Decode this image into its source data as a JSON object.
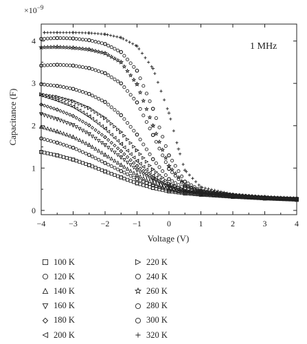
{
  "chart_data": {
    "type": "scatter",
    "title": "",
    "annotation": "1 MHz",
    "xlabel": "Voltage (V)",
    "ylabel": "Capacitance (F)",
    "y_multiplier_label": "×10",
    "y_multiplier_exponent": "−9",
    "xlim": [
      -4,
      4
    ],
    "ylim": [
      -0.1,
      4.4
    ],
    "x_ticks": [
      -4,
      -3,
      -2,
      -1,
      0,
      1,
      2,
      3,
      4
    ],
    "x_tick_labels": [
      "−4",
      "−3",
      "−2",
      "−1",
      "0",
      "1",
      "2",
      "3",
      "4"
    ],
    "y_ticks": [
      0,
      1,
      2,
      3,
      4
    ],
    "y_tick_labels": [
      "0",
      "1",
      "2",
      "3",
      "4"
    ],
    "grid": false,
    "legend_placement": "below-left",
    "series": [
      {
        "name": "100 K",
        "marker": "square",
        "points": [
          [
            -4,
            1.38
          ],
          [
            -3.5,
            1.3
          ],
          [
            -3,
            1.2
          ],
          [
            -2.5,
            1.07
          ],
          [
            -2,
            0.92
          ],
          [
            -1.5,
            0.78
          ],
          [
            -1,
            0.64
          ],
          [
            -0.5,
            0.53
          ],
          [
            0,
            0.45
          ],
          [
            0.5,
            0.4
          ],
          [
            1,
            0.37
          ],
          [
            2,
            0.32
          ],
          [
            3,
            0.28
          ],
          [
            4,
            0.25
          ]
        ]
      },
      {
        "name": "120 K",
        "marker": "circle",
        "points": [
          [
            -4,
            1.7
          ],
          [
            -3.5,
            1.6
          ],
          [
            -3,
            1.48
          ],
          [
            -2.5,
            1.31
          ],
          [
            -2,
            1.12
          ],
          [
            -1.5,
            0.93
          ],
          [
            -1,
            0.74
          ],
          [
            -0.5,
            0.59
          ],
          [
            0,
            0.48
          ],
          [
            0.5,
            0.42
          ],
          [
            1,
            0.38
          ],
          [
            2,
            0.33
          ],
          [
            3,
            0.29
          ],
          [
            4,
            0.26
          ]
        ]
      },
      {
        "name": "140 K",
        "marker": "triangle-up",
        "points": [
          [
            -4,
            1.98
          ],
          [
            -3.5,
            1.87
          ],
          [
            -3,
            1.74
          ],
          [
            -2.5,
            1.55
          ],
          [
            -2,
            1.32
          ],
          [
            -1.5,
            1.08
          ],
          [
            -1,
            0.84
          ],
          [
            -0.5,
            0.65
          ],
          [
            0,
            0.51
          ],
          [
            0.5,
            0.43
          ],
          [
            1,
            0.39
          ],
          [
            2,
            0.33
          ],
          [
            3,
            0.29
          ],
          [
            4,
            0.26
          ]
        ]
      },
      {
        "name": "160 K",
        "marker": "triangle-down",
        "points": [
          [
            -4,
            2.27
          ],
          [
            -3.5,
            2.15
          ],
          [
            -3,
            2.01
          ],
          [
            -2.5,
            1.8
          ],
          [
            -2,
            1.54
          ],
          [
            -1.5,
            1.25
          ],
          [
            -1,
            0.95
          ],
          [
            -0.5,
            0.71
          ],
          [
            0,
            0.54
          ],
          [
            0.5,
            0.44
          ],
          [
            1,
            0.4
          ],
          [
            2,
            0.34
          ],
          [
            3,
            0.29
          ],
          [
            4,
            0.26
          ]
        ]
      },
      {
        "name": "180 K",
        "marker": "diamond",
        "points": [
          [
            -4,
            2.5
          ],
          [
            -3.5,
            2.38
          ],
          [
            -3,
            2.23
          ],
          [
            -2.5,
            2.01
          ],
          [
            -2,
            1.73
          ],
          [
            -1.5,
            1.4
          ],
          [
            -1,
            1.05
          ],
          [
            -0.5,
            0.76
          ],
          [
            0,
            0.56
          ],
          [
            0.5,
            0.45
          ],
          [
            1,
            0.4
          ],
          [
            2,
            0.34
          ],
          [
            3,
            0.3
          ],
          [
            4,
            0.27
          ]
        ]
      },
      {
        "name": "200 K",
        "marker": "triangle-left",
        "points": [
          [
            -4,
            2.72
          ],
          [
            -3.5,
            2.6
          ],
          [
            -3,
            2.45
          ],
          [
            -2.5,
            2.22
          ],
          [
            -2,
            1.93
          ],
          [
            -1.5,
            1.57
          ],
          [
            -1,
            1.17
          ],
          [
            -0.5,
            0.82
          ],
          [
            0,
            0.58
          ],
          [
            0.5,
            0.46
          ],
          [
            1,
            0.4
          ],
          [
            2,
            0.34
          ],
          [
            3,
            0.3
          ],
          [
            4,
            0.27
          ]
        ]
      },
      {
        "name": "220 K",
        "marker": "triangle-right",
        "points": [
          [
            -4,
            2.74
          ],
          [
            -3.5,
            2.68
          ],
          [
            -3,
            2.58
          ],
          [
            -2.5,
            2.42
          ],
          [
            -2,
            2.18
          ],
          [
            -1.5,
            1.85
          ],
          [
            -1,
            1.42
          ],
          [
            -0.5,
            0.97
          ],
          [
            0,
            0.64
          ],
          [
            0.5,
            0.48
          ],
          [
            1,
            0.41
          ],
          [
            2,
            0.34
          ],
          [
            3,
            0.3
          ],
          [
            4,
            0.27
          ]
        ]
      },
      {
        "name": "240 K",
        "marker": "circle",
        "points": [
          [
            -4,
            2.98
          ],
          [
            -3.5,
            2.94
          ],
          [
            -3,
            2.87
          ],
          [
            -2.5,
            2.75
          ],
          [
            -2,
            2.56
          ],
          [
            -1.5,
            2.25
          ],
          [
            -1,
            1.79
          ],
          [
            -0.5,
            1.21
          ],
          [
            0,
            0.74
          ],
          [
            0.5,
            0.51
          ],
          [
            1,
            0.42
          ],
          [
            2,
            0.35
          ],
          [
            3,
            0.3
          ],
          [
            4,
            0.27
          ]
        ]
      },
      {
        "name": "260 K",
        "marker": "star",
        "points": [
          [
            -4,
            3.85
          ],
          [
            -3.5,
            3.86
          ],
          [
            -3,
            3.84
          ],
          [
            -2.5,
            3.8
          ],
          [
            -2,
            3.71
          ],
          [
            -1.5,
            3.5
          ],
          [
            -1,
            2.98
          ],
          [
            -0.5,
            2.0
          ],
          [
            0,
            1.05
          ],
          [
            0.5,
            0.6
          ],
          [
            1,
            0.45
          ],
          [
            2,
            0.36
          ],
          [
            3,
            0.31
          ],
          [
            4,
            0.28
          ]
        ]
      },
      {
        "name": "280 K",
        "marker": "circle",
        "points": [
          [
            -4,
            3.42
          ],
          [
            -3.5,
            3.44
          ],
          [
            -3,
            3.42
          ],
          [
            -2.5,
            3.36
          ],
          [
            -2,
            3.24
          ],
          [
            -1.5,
            3.0
          ],
          [
            -1,
            2.55
          ],
          [
            -0.5,
            1.78
          ],
          [
            0,
            0.98
          ],
          [
            0.5,
            0.58
          ],
          [
            1,
            0.45
          ],
          [
            2,
            0.36
          ],
          [
            3,
            0.31
          ],
          [
            4,
            0.27
          ]
        ]
      },
      {
        "name": "300 K",
        "marker": "circle",
        "points": [
          [
            -4,
            4.05
          ],
          [
            -3.5,
            4.07
          ],
          [
            -3,
            4.06
          ],
          [
            -2.5,
            4.02
          ],
          [
            -2,
            3.93
          ],
          [
            -1.5,
            3.74
          ],
          [
            -1,
            3.3
          ],
          [
            -0.5,
            2.4
          ],
          [
            0,
            1.3
          ],
          [
            0.5,
            0.68
          ],
          [
            1,
            0.47
          ],
          [
            2,
            0.37
          ],
          [
            3,
            0.31
          ],
          [
            4,
            0.28
          ]
        ]
      },
      {
        "name": "320 K",
        "marker": "plus",
        "points": [
          [
            -3.9,
            4.2
          ],
          [
            -3.5,
            4.2
          ],
          [
            -3,
            4.2
          ],
          [
            -2.5,
            4.19
          ],
          [
            -2,
            4.16
          ],
          [
            -1.5,
            4.08
          ],
          [
            -1,
            3.88
          ],
          [
            -0.5,
            3.35
          ],
          [
            0,
            2.3
          ],
          [
            0.3,
            1.45
          ],
          [
            0.5,
            0.95
          ],
          [
            1,
            0.55
          ],
          [
            2,
            0.38
          ],
          [
            3,
            0.32
          ],
          [
            4,
            0.28
          ]
        ]
      }
    ]
  }
}
